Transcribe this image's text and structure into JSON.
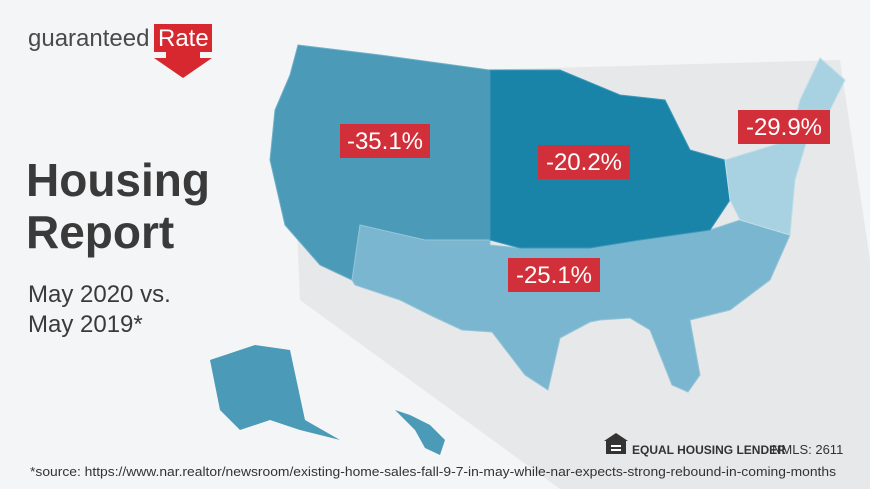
{
  "logo": {
    "brand": "guaranteed",
    "brand_highlight": "Rate"
  },
  "title": {
    "line1": "Housing",
    "line2": "Report"
  },
  "subtitle": {
    "line1": "May 2020 vs.",
    "line2": "May 2019*"
  },
  "regions": [
    {
      "name": "West",
      "label": "-35.1%"
    },
    {
      "name": "Midwest",
      "label": "-20.2%"
    },
    {
      "name": "Northeast",
      "label": "-29.9%"
    },
    {
      "name": "South",
      "label": "-25.1%"
    }
  ],
  "footer": {
    "lender": "EQUAL HOUSING LENDER",
    "nmls": "NMLS: 2611",
    "source": "*source: https://www.nar.realtor/newsroom/existing-home-sales-fall-9-7-in-may-while-nar-expects-strong-rebound-in-coming-months"
  }
}
